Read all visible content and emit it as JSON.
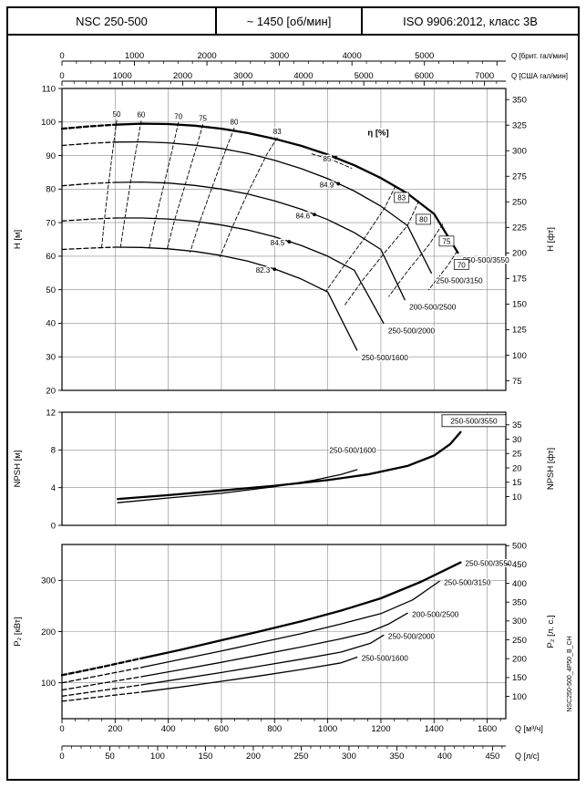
{
  "header": {
    "model": "NSC 250-500",
    "speed": "~ 1450 [об/мин]",
    "standard": "ISO 9906:2012, класс 3В"
  },
  "side_label": "NSC250-500_4P50_B_CH",
  "colors": {
    "line": "#000000",
    "grid": "#8a8a8a",
    "background": "#ffffff"
  },
  "chart_data": [
    {
      "type": "line",
      "name": "head-capacity",
      "xlim": [
        0,
        1670
      ],
      "ylim": [
        20,
        110
      ],
      "x_units": "м³/ч",
      "ylabel_left": "H [м]",
      "ylabel_right": "H [фт]",
      "yticks_left": [
        110,
        100,
        90,
        80,
        70,
        60,
        50,
        40,
        30,
        20
      ],
      "yticks_right": [
        350,
        325,
        300,
        275,
        250,
        225,
        200,
        175,
        150,
        125,
        100,
        75
      ],
      "top_axes": [
        {
          "label": "Q [брит. гал/мин]",
          "ticks": [
            0,
            1000,
            2000,
            3000,
            4000,
            5000
          ]
        },
        {
          "label": "Q [США гал/мин]",
          "ticks": [
            0,
            1000,
            2000,
            3000,
            4000,
            5000,
            6000,
            7000
          ]
        }
      ],
      "series": [
        {
          "label": "250-500/3550",
          "bold": true,
          "dash_until": 200,
          "points": [
            [
              0,
              98
            ],
            [
              100,
              98.7
            ],
            [
              200,
              99.2
            ],
            [
              300,
              99.5
            ],
            [
              400,
              99.4
            ],
            [
              500,
              98.9
            ],
            [
              600,
              98
            ],
            [
              700,
              96.7
            ],
            [
              800,
              95
            ],
            [
              900,
              92.9
            ],
            [
              1000,
              90.3
            ],
            [
              1100,
              87.1
            ],
            [
              1200,
              83.3
            ],
            [
              1300,
              78.7
            ],
            [
              1400,
              72.6
            ],
            [
              1490,
              61
            ]
          ]
        },
        {
          "label": "250-500/3150",
          "bold": false,
          "dash_until": 200,
          "points": [
            [
              0,
              93
            ],
            [
              100,
              93.6
            ],
            [
              200,
              94
            ],
            [
              300,
              94.1
            ],
            [
              400,
              93.8
            ],
            [
              500,
              93.1
            ],
            [
              600,
              92.1
            ],
            [
              700,
              90.6
            ],
            [
              800,
              88.6
            ],
            [
              900,
              86.1
            ],
            [
              1000,
              83.1
            ],
            [
              1100,
              79.4
            ],
            [
              1200,
              74.9
            ],
            [
              1300,
              69.1
            ],
            [
              1390,
              55
            ]
          ]
        },
        {
          "label": "200-500/2500",
          "bold": false,
          "dash_until": 200,
          "points": [
            [
              0,
              81
            ],
            [
              100,
              81.6
            ],
            [
              200,
              82
            ],
            [
              300,
              82.1
            ],
            [
              400,
              81.8
            ],
            [
              500,
              81.1
            ],
            [
              600,
              80
            ],
            [
              700,
              78.5
            ],
            [
              800,
              76.5
            ],
            [
              900,
              74
            ],
            [
              1000,
              70.9
            ],
            [
              1100,
              67
            ],
            [
              1200,
              62
            ],
            [
              1290,
              47
            ]
          ]
        },
        {
          "label": "250-500/2000",
          "bold": false,
          "dash_until": 200,
          "points": [
            [
              0,
              70.5
            ],
            [
              100,
              71
            ],
            [
              200,
              71.4
            ],
            [
              300,
              71.4
            ],
            [
              400,
              71.1
            ],
            [
              500,
              70.4
            ],
            [
              600,
              69.3
            ],
            [
              700,
              67.8
            ],
            [
              800,
              65.8
            ],
            [
              900,
              63.2
            ],
            [
              1000,
              60
            ],
            [
              1100,
              55.8
            ],
            [
              1210,
              40
            ]
          ]
        },
        {
          "label": "250-500/1600",
          "bold": false,
          "dash_until": 200,
          "points": [
            [
              0,
              62
            ],
            [
              100,
              62.4
            ],
            [
              200,
              62.7
            ],
            [
              300,
              62.6
            ],
            [
              400,
              62.2
            ],
            [
              500,
              61.4
            ],
            [
              600,
              60.2
            ],
            [
              700,
              58.5
            ],
            [
              800,
              56.2
            ],
            [
              900,
              53.2
            ],
            [
              1000,
              49.3
            ],
            [
              1110,
              32
            ]
          ]
        }
      ],
      "efficiency": {
        "title": "η [%]",
        "title_at": [
          1190,
          96
        ],
        "contours": [
          {
            "label": "50",
            "side": "top",
            "points": [
              [
                206,
                100.5
              ],
              [
                195,
                94
              ],
              [
                176,
                82
              ],
              [
                160,
                71
              ],
              [
                149,
                62.5
              ]
            ]
          },
          {
            "label": "60",
            "side": "top",
            "points": [
              [
                298,
                100.3
              ],
              [
                284,
                94
              ],
              [
                258,
                82
              ],
              [
                236,
                71
              ],
              [
                220,
                62.6
              ]
            ]
          },
          {
            "label": "70",
            "side": "top",
            "points": [
              [
                438,
                99.8
              ],
              [
                420,
                93.5
              ],
              [
                385,
                81.7
              ],
              [
                352,
                71
              ],
              [
                328,
                62.5
              ]
            ]
          },
          {
            "label": "75",
            "side": "top",
            "points": [
              [
                530,
                99.2
              ],
              [
                508,
                93
              ],
              [
                464,
                81.4
              ],
              [
                424,
                70.8
              ],
              [
                395,
                62
              ]
            ]
          },
          {
            "label": "80",
            "side": "top",
            "points": [
              [
                648,
                98.2
              ],
              [
                620,
                92.5
              ],
              [
                566,
                80.8
              ],
              [
                518,
                70.2
              ],
              [
                482,
                61.2
              ]
            ]
          },
          {
            "label": "83",
            "side": "top",
            "points": [
              [
                810,
                95.3
              ],
              [
                772,
                90.5
              ],
              [
                700,
                79
              ],
              [
                640,
                68.5
              ],
              [
                595,
                59.8
              ]
            ]
          },
          {
            "label": "",
            "side": "none",
            "points": [
              [
                940,
                90.5
              ],
              [
                1020,
                88.6
              ],
              [
                1090,
                86.2
              ]
            ]
          },
          {
            "label": "83",
            "side": "box",
            "box_at": [
              1278,
              77.5
            ],
            "points": [
              [
                1255,
                81
              ],
              [
                1215,
                74.5
              ],
              [
                1135,
                65
              ],
              [
                1058,
                56.8
              ],
              [
                993,
                49.5
              ]
            ]
          },
          {
            "label": "80",
            "side": "box",
            "box_at": [
              1360,
              71
            ],
            "points": [
              [
                1343,
                76.5
              ],
              [
                1300,
                69.1
              ],
              [
                1215,
                61.1
              ],
              [
                1132,
                52.9
              ],
              [
                1062,
                45.2
              ]
            ]
          },
          {
            "label": "75",
            "side": "box",
            "box_at": [
              1447,
              64.5
            ],
            "points": [
              [
                1432,
                69.5
              ],
              [
                1382,
                63.5
              ],
              [
                1300,
                55.5
              ],
              [
                1230,
                48
              ]
            ]
          },
          {
            "label": "70",
            "side": "box",
            "box_at": [
              1503,
              57.5
            ],
            "points": [
              [
                1487,
                61.5
              ],
              [
                1450,
                57
              ],
              [
                1380,
                50
              ]
            ]
          }
        ],
        "bep": [
          {
            "label": "85",
            "q": 1030,
            "h": 89.4
          },
          {
            "label": "84.9",
            "q": 1040,
            "h": 81.6
          },
          {
            "label": "84.6",
            "q": 950,
            "h": 72.4
          },
          {
            "label": "84.5",
            "q": 855,
            "h": 64.3
          },
          {
            "label": "82.3",
            "q": 800,
            "h": 56.1
          }
        ]
      }
    },
    {
      "type": "line",
      "name": "npsh",
      "xlim": [
        0,
        1670
      ],
      "ylim": [
        0,
        12
      ],
      "ylabel_left": "NPSH [м]",
      "ylabel_right": "NPSH [фт]",
      "yticks_left": [
        12,
        8,
        4,
        0
      ],
      "yticks_right": [
        35,
        30,
        25,
        20,
        15,
        10
      ],
      "series": [
        {
          "label": "250-500/3550",
          "bold": true,
          "points": [
            [
              210,
              2.8
            ],
            [
              400,
              3.2
            ],
            [
              600,
              3.7
            ],
            [
              800,
              4.2
            ],
            [
              1000,
              4.8
            ],
            [
              1150,
              5.4
            ],
            [
              1300,
              6.3
            ],
            [
              1400,
              7.4
            ],
            [
              1460,
              8.6
            ],
            [
              1500,
              9.9
            ]
          ]
        },
        {
          "label": "250-500/1600",
          "bold": false,
          "points": [
            [
              210,
              2.4
            ],
            [
              400,
              2.9
            ],
            [
              600,
              3.4
            ],
            [
              800,
              4.1
            ],
            [
              950,
              4.8
            ],
            [
              1050,
              5.4
            ],
            [
              1110,
              5.9
            ]
          ]
        }
      ],
      "labels": [
        {
          "text": "250-500/3550",
          "q": 1550,
          "v": 11.1,
          "box": true
        },
        {
          "text": "250-500/1600",
          "q": 1094,
          "v": 8.0,
          "box": false
        }
      ]
    },
    {
      "type": "line",
      "name": "power",
      "xlim": [
        0,
        1670
      ],
      "ylim": [
        30,
        370
      ],
      "ylabel_left": "P₂ [кВт]",
      "ylabel_right": "P₂ [л. с.]",
      "yticks_left": [
        300,
        200,
        100
      ],
      "yticks_right": [
        500,
        450,
        400,
        350,
        300,
        250,
        200,
        150,
        100
      ],
      "bottom_axes": [
        {
          "label": "Q [м³/ч]",
          "ticks": [
            0,
            200,
            400,
            600,
            800,
            1000,
            1200,
            1400,
            1600
          ]
        },
        {
          "label": "Q [л/с]",
          "ticks": [
            0,
            50,
            100,
            150,
            200,
            250,
            300,
            350,
            400,
            450
          ]
        }
      ],
      "series": [
        {
          "label": "250-500/3550",
          "bold": true,
          "dash_until": 300,
          "points": [
            [
              0,
              115
            ],
            [
              150,
              131
            ],
            [
              300,
              148
            ],
            [
              450,
              165
            ],
            [
              600,
              183
            ],
            [
              750,
              201
            ],
            [
              900,
              220
            ],
            [
              1050,
              241
            ],
            [
              1200,
              265
            ],
            [
              1350,
              297
            ],
            [
              1500,
              335
            ]
          ]
        },
        {
          "label": "250-500/3150",
          "bold": false,
          "dash_until": 300,
          "points": [
            [
              0,
              100
            ],
            [
              150,
              115
            ],
            [
              300,
              130
            ],
            [
              450,
              146
            ],
            [
              600,
              162
            ],
            [
              750,
              179
            ],
            [
              900,
              196
            ],
            [
              1050,
              215
            ],
            [
              1200,
              235
            ],
            [
              1320,
              262
            ],
            [
              1420,
              298
            ]
          ]
        },
        {
          "label": "200-500/2500",
          "bold": false,
          "dash_until": 300,
          "points": [
            [
              0,
              86
            ],
            [
              150,
              99
            ],
            [
              300,
              112
            ],
            [
              450,
              126
            ],
            [
              600,
              140
            ],
            [
              750,
              155
            ],
            [
              900,
              170
            ],
            [
              1050,
              186
            ],
            [
              1150,
              198
            ],
            [
              1230,
              215
            ],
            [
              1300,
              236
            ]
          ]
        },
        {
          "label": "250-500/2000",
          "bold": false,
          "dash_until": 300,
          "points": [
            [
              0,
              74
            ],
            [
              150,
              85
            ],
            [
              300,
              96
            ],
            [
              450,
              108
            ],
            [
              600,
              120
            ],
            [
              750,
              133
            ],
            [
              900,
              146
            ],
            [
              1050,
              160
            ],
            [
              1160,
              177
            ],
            [
              1210,
              193
            ]
          ]
        },
        {
          "label": "250-500/1600",
          "bold": false,
          "dash_until": 300,
          "points": [
            [
              0,
              64
            ],
            [
              150,
              73
            ],
            [
              300,
              82
            ],
            [
              450,
              92
            ],
            [
              600,
              103
            ],
            [
              750,
              114
            ],
            [
              900,
              126
            ],
            [
              1050,
              139
            ],
            [
              1110,
              150
            ]
          ]
        }
      ]
    }
  ]
}
